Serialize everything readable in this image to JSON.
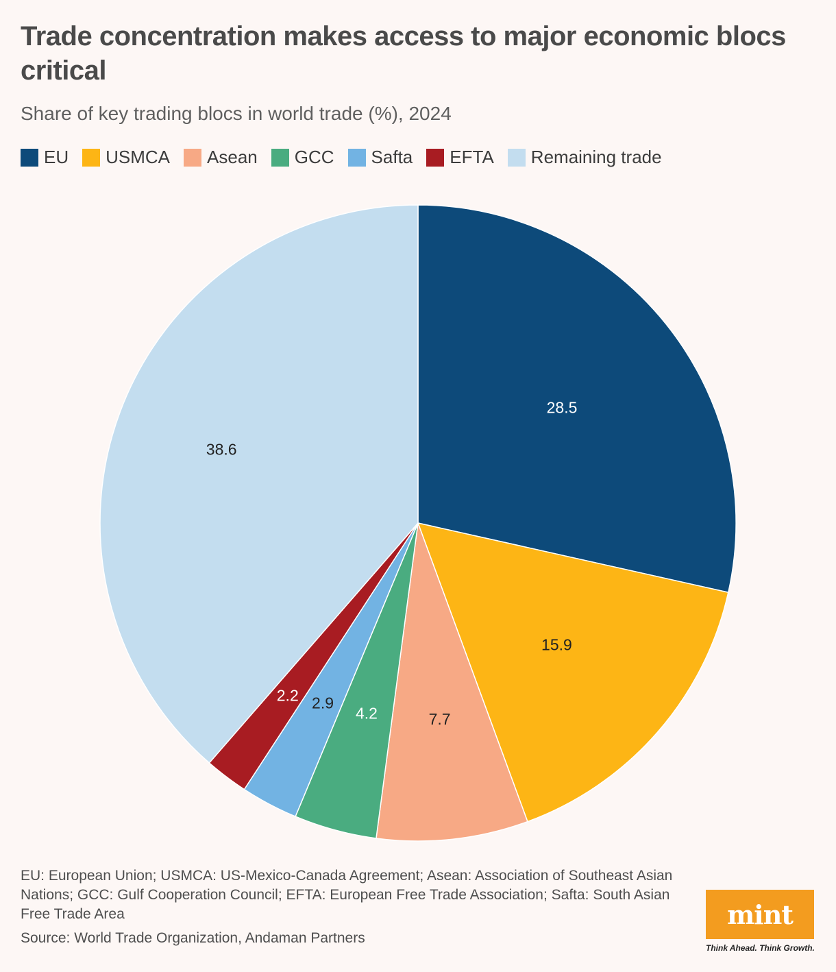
{
  "title": "Trade concentration makes access to major economic blocs critical",
  "subtitle": "Share of key trading blocs in world trade (%), 2024",
  "footnote": "EU: European Union; USMCA: US-Mexico-Canada Agreement; Asean: Association of Southeast Asian Nations; GCC: Gulf Cooperation Council; EFTA: European Free Trade Association; Safta: South Asian Free Trade Area",
  "source": "Source: World Trade Organization, Andaman Partners",
  "logo": {
    "text": "mint",
    "tagline": "Think Ahead. Think Growth.",
    "color": "#f39c1f"
  },
  "chart_data": {
    "type": "pie",
    "title": "Trade concentration makes access to major economic blocs critical",
    "subtitle": "Share of key trading blocs in world trade (%), 2024",
    "legend_position": "top-left",
    "start_angle": "12 o'clock, clockwise",
    "slices": [
      {
        "label": "EU",
        "value": 28.5,
        "color": "#0d4a7a",
        "label_color": "#ffffff"
      },
      {
        "label": "USMCA",
        "value": 15.9,
        "color": "#fdb515",
        "label_color": "#222222"
      },
      {
        "label": "Asean",
        "value": 7.7,
        "color": "#f7a985",
        "label_color": "#222222"
      },
      {
        "label": "GCC",
        "value": 4.2,
        "color": "#4aac80",
        "label_color": "#ffffff"
      },
      {
        "label": "Safta",
        "value": 2.9,
        "color": "#72b3e3",
        "label_color": "#222222"
      },
      {
        "label": "EFTA",
        "value": 2.2,
        "color": "#a81c22",
        "label_color": "#ffffff"
      },
      {
        "label": "Remaining trade",
        "value": 38.6,
        "color": "#c3ddef",
        "label_color": "#222222"
      }
    ]
  }
}
